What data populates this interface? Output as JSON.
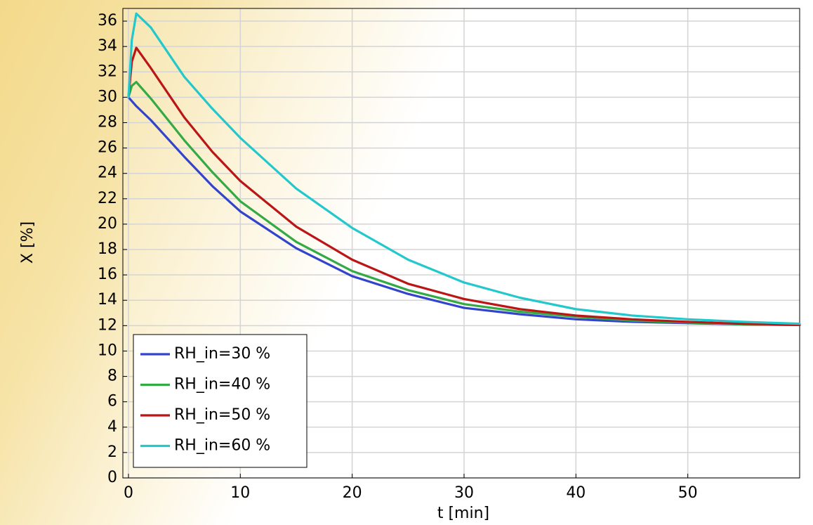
{
  "chart_data": {
    "type": "line",
    "x_label": "t [min]",
    "y_label": "X [%]",
    "x": [
      0,
      0.3,
      0.7,
      2,
      5,
      7.5,
      10,
      15,
      20,
      25,
      30,
      35,
      40,
      45,
      50,
      55,
      60
    ],
    "series": [
      {
        "name": "RH_in=30 %",
        "color": "#3344cc",
        "values": [
          30,
          29.7,
          29.3,
          28.2,
          25.3,
          23.0,
          21.0,
          18.1,
          15.9,
          14.5,
          13.4,
          12.9,
          12.5,
          12.3,
          12.2,
          12.1,
          12.05
        ]
      },
      {
        "name": "RH_in=40 %",
        "color": "#33aa44",
        "values": [
          30,
          30.9,
          31.2,
          29.9,
          26.6,
          24.1,
          21.8,
          18.6,
          16.3,
          14.8,
          13.7,
          13.1,
          12.7,
          12.4,
          12.25,
          12.1,
          12.05
        ]
      },
      {
        "name": "RH_in=50 %",
        "color": "#bb1515",
        "values": [
          30,
          32.8,
          33.9,
          32.3,
          28.4,
          25.7,
          23.4,
          19.8,
          17.2,
          15.3,
          14.1,
          13.3,
          12.8,
          12.5,
          12.3,
          12.15,
          12.05
        ]
      },
      {
        "name": "RH_in=60 %",
        "color": "#22c8cc",
        "values": [
          30,
          34.5,
          36.6,
          35.5,
          31.6,
          29.1,
          26.8,
          22.8,
          19.7,
          17.2,
          15.4,
          14.2,
          13.3,
          12.8,
          12.5,
          12.3,
          12.15
        ]
      }
    ],
    "xlim": [
      -0.5,
      60
    ],
    "ylim": [
      0,
      37
    ],
    "xticks": [
      0,
      10,
      20,
      30,
      40,
      50
    ],
    "yticks": [
      0,
      2,
      4,
      6,
      8,
      10,
      12,
      14,
      16,
      18,
      20,
      22,
      24,
      26,
      28,
      30,
      32,
      34,
      36
    ],
    "grid": true,
    "legend": "lower left"
  }
}
